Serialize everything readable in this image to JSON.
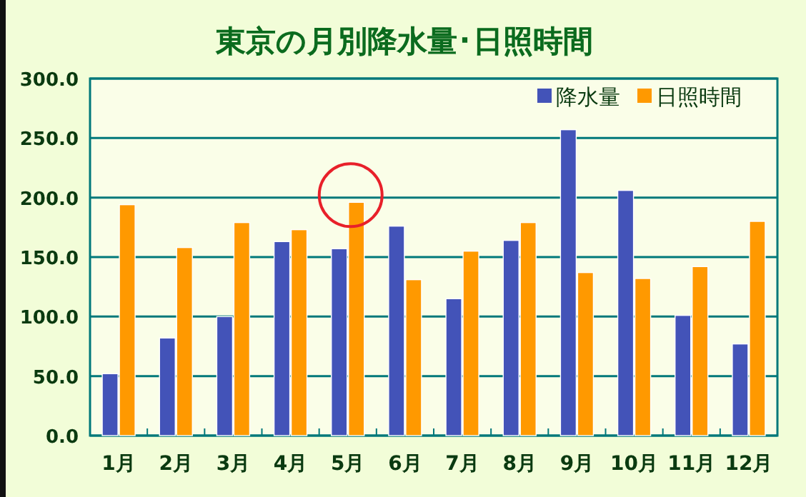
{
  "chart_data": {
    "type": "bar",
    "title": "東京の月別降水量･日照時間",
    "categories": [
      "1月",
      "2月",
      "3月",
      "4月",
      "5月",
      "6月",
      "7月",
      "8月",
      "9月",
      "10月",
      "11月",
      "12月"
    ],
    "series": [
      {
        "name": "降水量",
        "color": "#4353b8",
        "values": [
          52,
          82,
          100,
          163,
          157,
          176,
          115,
          164,
          257,
          206,
          101,
          77
        ]
      },
      {
        "name": "日照時間",
        "color": "#ff9900",
        "values": [
          194,
          158,
          179,
          173,
          196,
          131,
          155,
          179,
          137,
          132,
          142,
          180
        ]
      }
    ],
    "ylim": [
      0,
      300
    ],
    "yticks": [
      {
        "value": 0,
        "label": "0.0"
      },
      {
        "value": 50,
        "label": "50.0"
      },
      {
        "value": 100,
        "label": "100.0"
      },
      {
        "value": 150,
        "label": "150.0"
      },
      {
        "value": 200,
        "label": "200.0"
      },
      {
        "value": 250,
        "label": "250.0"
      },
      {
        "value": 300,
        "label": "300.0"
      }
    ],
    "grid": "y",
    "legend": "top right"
  }
}
